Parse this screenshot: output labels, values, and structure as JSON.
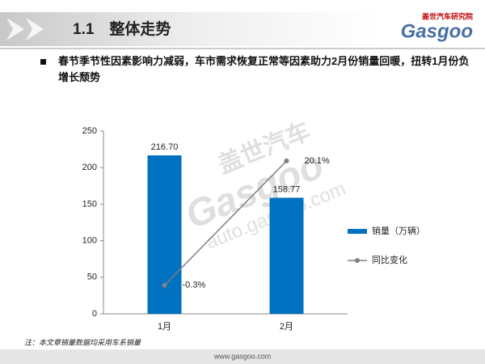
{
  "header": {
    "title": "1.1　整体走势",
    "logo_cn": "盖世汽车研究院",
    "logo_en": "Gasgoo"
  },
  "bullet": "春节季节性因素影响力减弱，车市需求恢复正常等因素助力2月份销量回暖，扭转1月份负增长颓势",
  "watermark": {
    "cn": "盖世汽车",
    "en": "Gasgoo",
    "url": "auto.gasgoo.com"
  },
  "chart_data": {
    "type": "bar",
    "categories": [
      "1月",
      "2月"
    ],
    "series": [
      {
        "name": "销量（万辆）",
        "type": "bar",
        "color": "#0070c0",
        "values": [
          216.7,
          158.77
        ],
        "value_labels": [
          "216.70",
          "158.77"
        ]
      },
      {
        "name": "同比变化",
        "type": "line",
        "axis": "y2",
        "color": "#808080",
        "values": [
          -0.3,
          20.1
        ],
        "value_labels": [
          "-0.3%",
          "20.1%"
        ]
      }
    ],
    "ylim": [
      0,
      250
    ],
    "yticks": [
      0,
      50,
      100,
      150,
      200,
      250
    ],
    "y2lim": [
      -5,
      25
    ],
    "grid": false,
    "legend": "right"
  },
  "footnote": "注：本文章销量数据均采用车系销量",
  "footer": "www.gasgoo.com"
}
